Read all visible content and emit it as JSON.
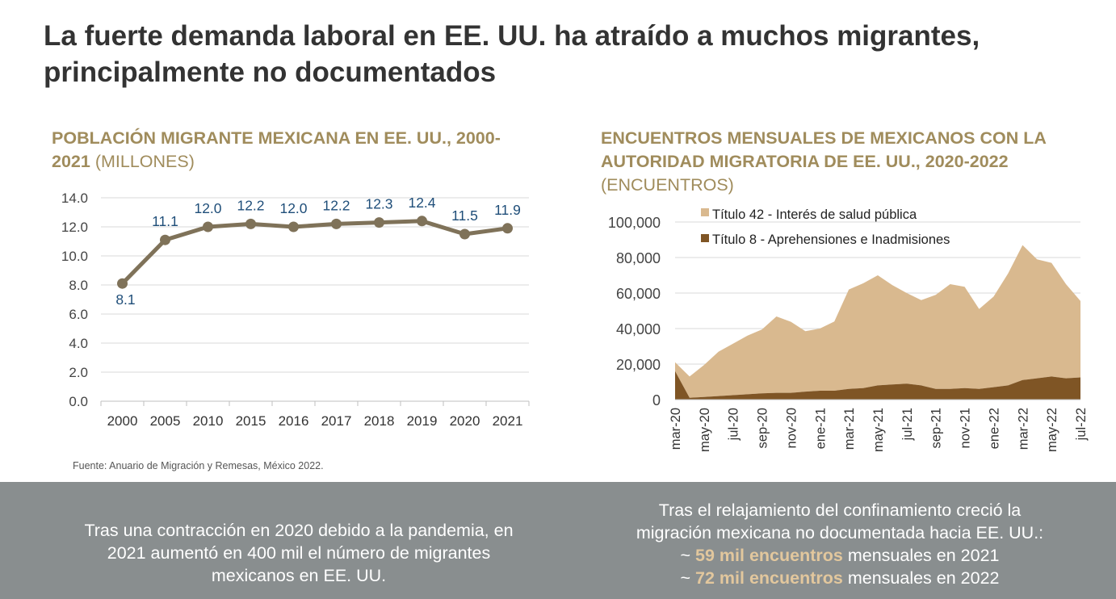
{
  "title": "La fuerte demanda laboral en EE. UU. ha atraído a muchos migrantes, principalmente no documentados",
  "source": "Fuente: Anuario de Migración y Remesas, México 2022.",
  "colors": {
    "gold": "#a08c5c",
    "line": "#7f7259",
    "label_blue": "#1f4e79",
    "title42": "#d9b98f",
    "title8": "#7f5525",
    "footer_bg": "#898e8f",
    "highlight": "#e2c79d"
  },
  "footer": {
    "left_text": "Tras una contracción en 2020 debido a la pandemia, en 2021 aumentó en 400 mil el número de migrantes mexicanos en EE. UU.",
    "right_intro": "Tras el relajamiento del confinamiento creció la migración mexicana no documentada hacia EE. UU.:",
    "bullet1_prefix": "~ ",
    "bullet1_highlight": "59 mil encuentros",
    "bullet1_suffix": " mensuales en 2021",
    "bullet2_prefix": "~ ",
    "bullet2_highlight": "72 mil encuentros",
    "bullet2_suffix": " mensuales en 2022"
  },
  "chart_data": [
    {
      "type": "line",
      "title": "POBLACIÓN MIGRANTE MEXICANA EN EE. UU., 2000-2021",
      "unit": "(MILLONES)",
      "categories": [
        "2000",
        "2005",
        "2010",
        "2015",
        "2016",
        "2017",
        "2018",
        "2019",
        "2020",
        "2021"
      ],
      "values": [
        8.1,
        11.1,
        12.0,
        12.2,
        12.0,
        12.2,
        12.3,
        12.4,
        11.5,
        11.9
      ],
      "data_labels": [
        "8.1",
        "11.1",
        "12.0",
        "12.2",
        "12.0",
        "12.2",
        "12.3",
        "12.4",
        "11.5",
        "11.9"
      ],
      "yticks": [
        "0.0",
        "2.0",
        "4.0",
        "6.0",
        "8.0",
        "10.0",
        "12.0",
        "14.0"
      ],
      "ylim": [
        0,
        14
      ],
      "grid": true
    },
    {
      "type": "area",
      "title": "ENCUENTROS MENSUALES DE MEXICANOS CON LA AUTORIDAD MIGRATORIA DE EE. UU., 2020-2022",
      "unit": "(ENCUENTROS)",
      "x": [
        "mar-20",
        "abr-20",
        "may-20",
        "jun-20",
        "jul-20",
        "ago-20",
        "sep-20",
        "oct-20",
        "nov-20",
        "dic-20",
        "ene-21",
        "feb-21",
        "mar-21",
        "abr-21",
        "may-21",
        "jun-21",
        "jul-21",
        "ago-21",
        "sep-21",
        "oct-21",
        "nov-21",
        "dic-21",
        "ene-22",
        "feb-22",
        "mar-22",
        "abr-22",
        "may-22",
        "jun-22",
        "jul-22"
      ],
      "xtick_labels": [
        "mar-20",
        "may-20",
        "jul-20",
        "sep-20",
        "nov-20",
        "ene-21",
        "mar-21",
        "may-21",
        "jul-21",
        "sep-21",
        "nov-21",
        "ene-22",
        "mar-22",
        "may-22",
        "jul-22"
      ],
      "series": [
        {
          "name": "Título 42 - Interés de salud pública",
          "values": [
            5000,
            12000,
            18000,
            25000,
            29000,
            33000,
            36000,
            43000,
            40000,
            34000,
            35000,
            39000,
            56000,
            59000,
            62000,
            56000,
            51000,
            48000,
            53000,
            59000,
            57000,
            45000,
            51000,
            63000,
            76000,
            67000,
            64000,
            53000,
            43000
          ]
        },
        {
          "name": "Título 8 - Aprehensiones e Inadmisiones",
          "values": [
            16000,
            1000,
            1500,
            2000,
            2500,
            3000,
            3500,
            3800,
            3800,
            4500,
            5000,
            5000,
            6000,
            6500,
            8000,
            8500,
            9000,
            8000,
            6000,
            6000,
            6500,
            6000,
            7000,
            8000,
            11000,
            12000,
            13000,
            12000,
            12500
          ]
        }
      ],
      "yticks": [
        "0",
        "20,000",
        "40,000",
        "60,000",
        "80,000",
        "100,000"
      ],
      "ylim": [
        0,
        100000
      ],
      "grid": true,
      "legend_position": "top-left"
    }
  ]
}
